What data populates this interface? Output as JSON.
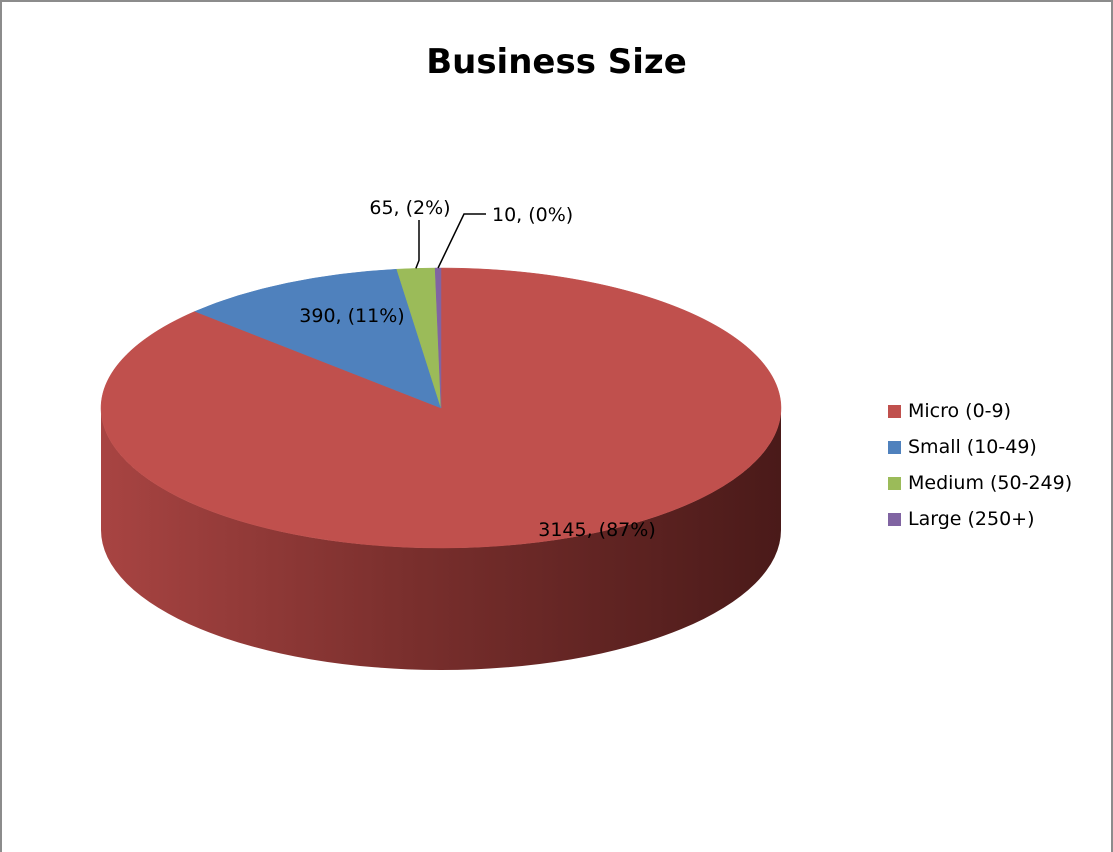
{
  "chart_data": {
    "type": "pie",
    "title": "Business Size",
    "slices": [
      {
        "name": "Micro (0-9)",
        "value": 3145,
        "percent_label": "3145, (87%)",
        "color": "#c0504d"
      },
      {
        "name": "Small (10-49)",
        "value": 390,
        "percent_label": "390, (11%)",
        "color": "#4f81bd"
      },
      {
        "name": "Medium (50-249)",
        "value": 65,
        "percent_label": "65, (2%)",
        "color": "#9bbb59"
      },
      {
        "name": "Large (250+)",
        "value": 10,
        "percent_label": "10, (0%)",
        "color": "#8064a2"
      }
    ],
    "legend_position": "right",
    "style": "3d"
  }
}
